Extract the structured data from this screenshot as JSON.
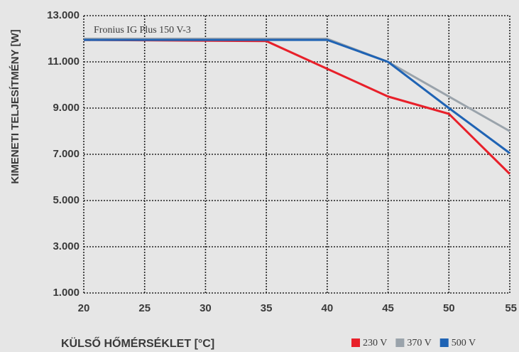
{
  "chart_data": {
    "type": "line",
    "annotation": "Fronius IG Plus 150 V-3",
    "y_label": "KIMENETI TELJESÍTMÉNY [W]",
    "x_label": "KÜLSŐ HŐMÉRSÉKLET [°C]",
    "x": [
      20,
      35,
      40,
      45,
      50,
      55
    ],
    "series": [
      {
        "name": "230 V",
        "color": "#e8202a",
        "values": [
          11950,
          11900,
          10700,
          9500,
          8750,
          6150
        ]
      },
      {
        "name": "370 V",
        "color": "#9aa3ab",
        "values": [
          12000,
          12000,
          12000,
          11000,
          9500,
          8000
        ]
      },
      {
        "name": "500 V",
        "color": "#1f63b4",
        "values": [
          11950,
          11950,
          11950,
          11000,
          9000,
          7050
        ]
      }
    ],
    "xlim": [
      20,
      55
    ],
    "xticks": [
      20,
      25,
      30,
      35,
      40,
      45,
      50,
      55
    ],
    "ylim": [
      1000,
      13000
    ],
    "yticks": [
      {
        "value": 1000,
        "label": "1.000"
      },
      {
        "value": 3000,
        "label": "3.000"
      },
      {
        "value": 5000,
        "label": "5.000"
      },
      {
        "value": 7000,
        "label": "7.000"
      },
      {
        "value": 9000,
        "label": "9.000"
      },
      {
        "value": 11000,
        "label": "11.000"
      },
      {
        "value": 13000,
        "label": "13.000"
      }
    ],
    "grid": true,
    "legend": "bottom-right"
  }
}
